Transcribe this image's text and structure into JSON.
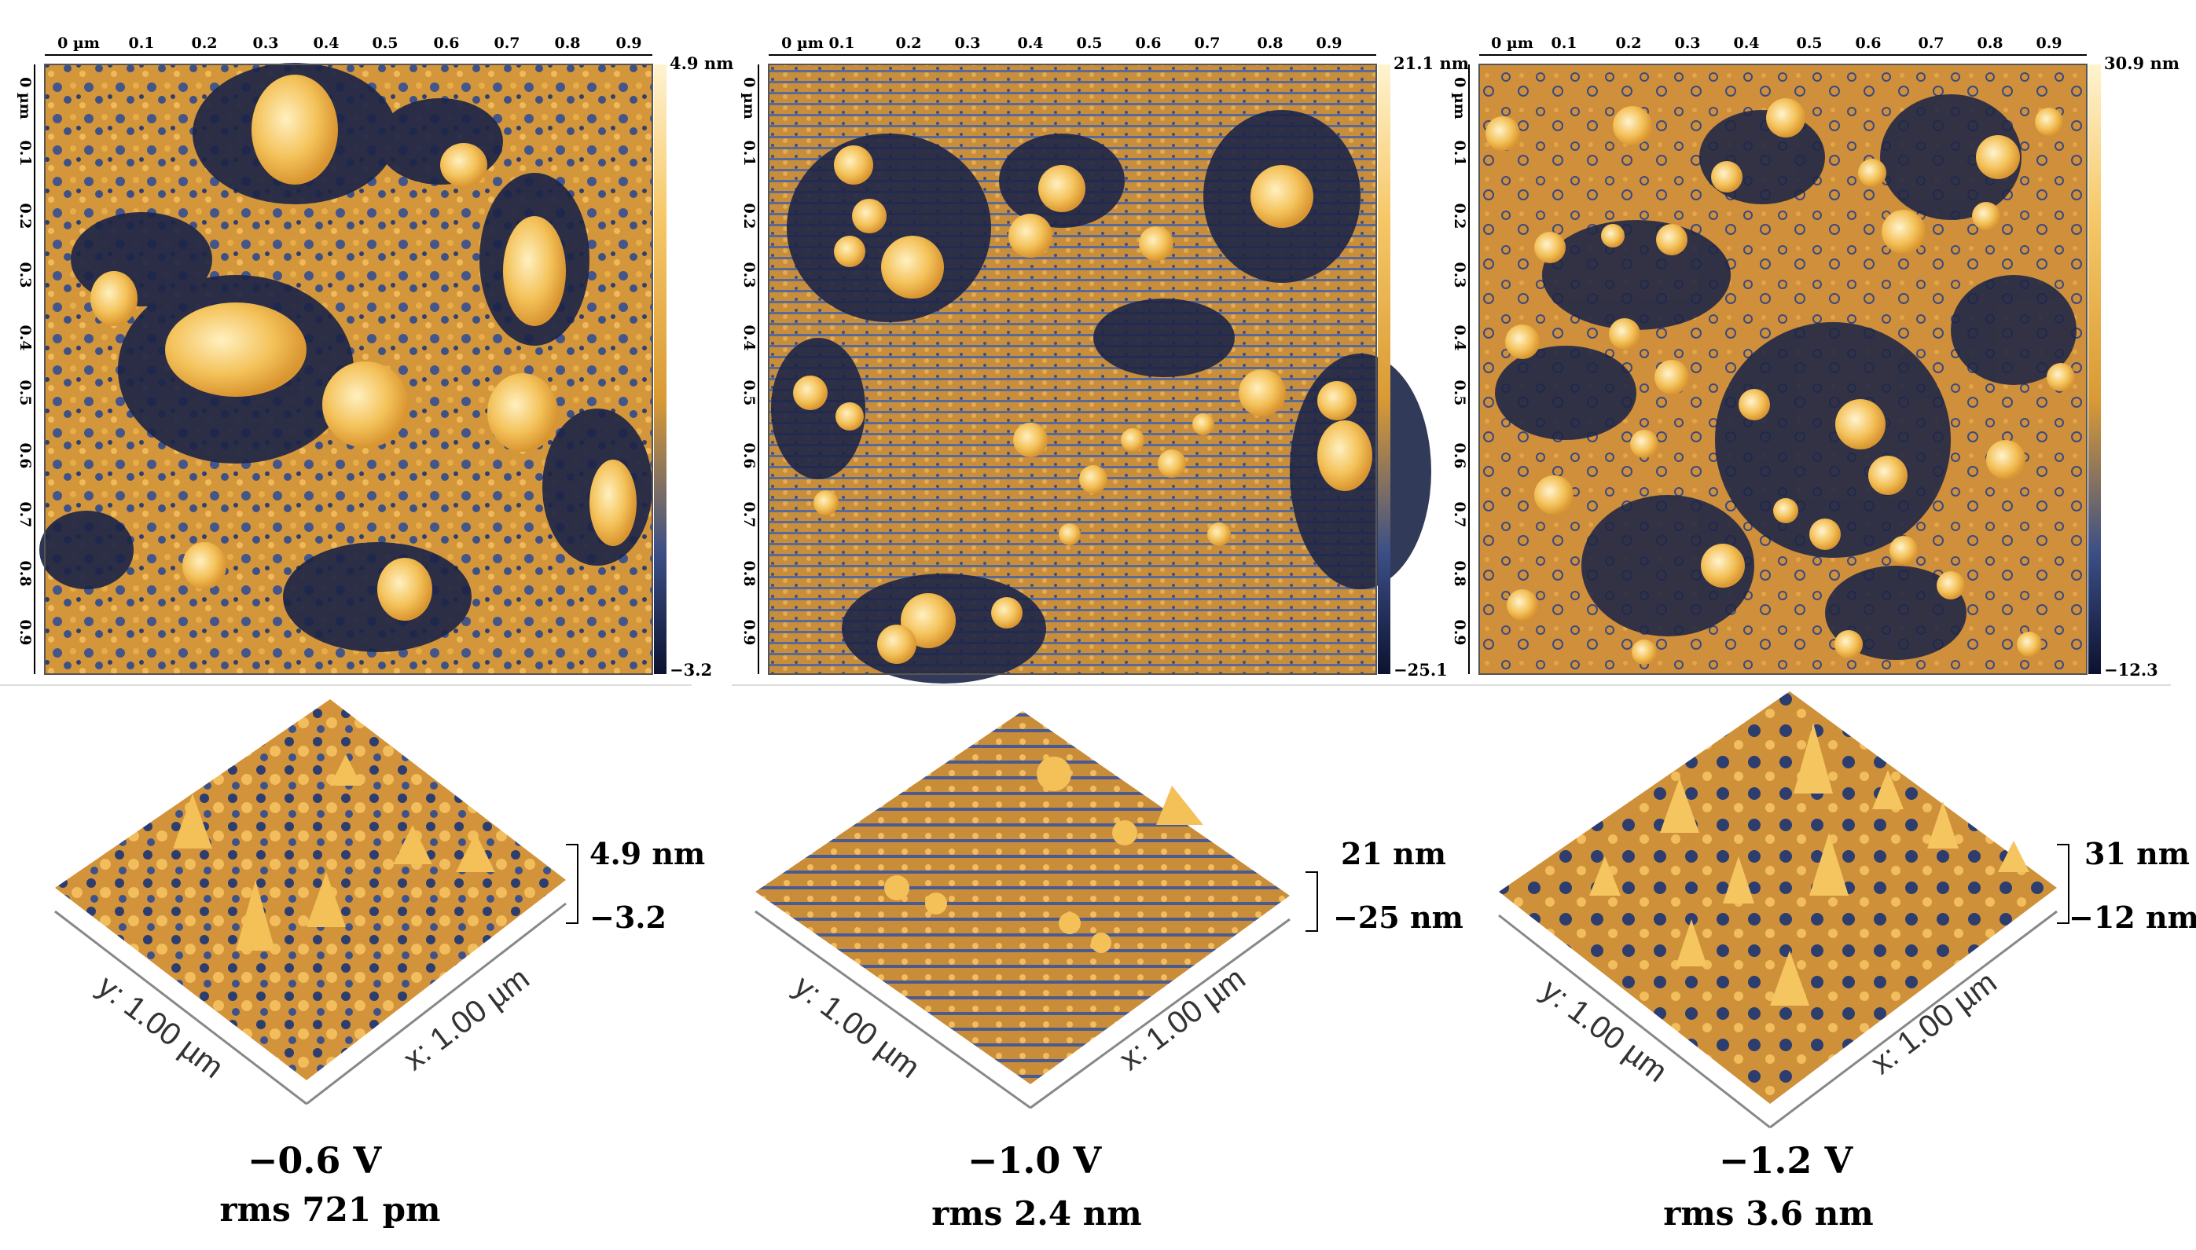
{
  "palette": {
    "dark": "#1c2547",
    "mid": "#3c4f86",
    "orange": "#e0a036",
    "bright": "#f6c868",
    "white": "#fff3d0"
  },
  "x_ticks": [
    "0 µm",
    "0.1",
    "0.2",
    "0.3",
    "0.4",
    "0.5",
    "0.6",
    "0.7",
    "0.8",
    "0.9"
  ],
  "y_ticks": [
    "0 µm",
    "0.1",
    "0.2",
    "0.3",
    "0.4",
    "0.5",
    "0.6",
    "0.7",
    "0.8",
    "0.9"
  ],
  "panels": [
    {
      "colorbar_max": "4.9 nm",
      "colorbar_min": "−3.2",
      "z_max": "4.9 nm",
      "z_min": "−3.2",
      "axis_y": "y: 1.00 µm",
      "axis_x": "x: 1.00 µm",
      "voltage": "−0.6 V",
      "rms": "rms 721 pm"
    },
    {
      "colorbar_max": "21.1 nm",
      "colorbar_min": "−25.1",
      "z_max": "21 nm",
      "z_min": "−25 nm",
      "axis_y": "y: 1.00 µm",
      "axis_x": "x: 1.00 µm",
      "voltage": "−1.0 V",
      "rms": "rms 2.4 nm"
    },
    {
      "colorbar_max": "30.9 nm",
      "colorbar_min": "−12.3",
      "z_max": "31 nm",
      "z_min": "−12 nm",
      "axis_y": "y: 1.00 µm",
      "axis_x": "x: 1.00 µm",
      "voltage": "−1.2 V",
      "rms": "rms 3.6 nm"
    }
  ]
}
